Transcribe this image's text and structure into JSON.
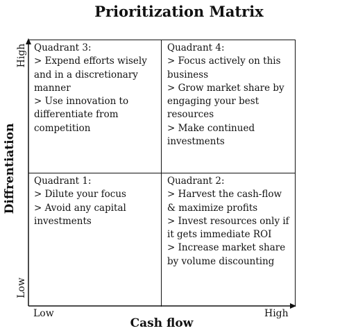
{
  "title": "Prioritization Matrix",
  "axes": {
    "x_label": "Cash flow",
    "y_label": "Diffrentiation",
    "x_low": "Low",
    "x_high": "High",
    "y_low": "Low",
    "y_high": "High"
  },
  "quadrants": {
    "q3": {
      "title": "Quadrant 3:",
      "items": [
        "> Expend efforts wisely and in a discretionary manner",
        "> Use innovation to differentiate from competition"
      ]
    },
    "q4": {
      "title": "Quadrant 4:",
      "items": [
        "> Focus actively on this business",
        "> Grow market share by engaging your best resources",
        "> Make continued investments"
      ]
    },
    "q1": {
      "title": "Quadrant 1:",
      "items": [
        "> Dilute your focus",
        "> Avoid any capital investments"
      ]
    },
    "q2": {
      "title": "Quadrant 2:",
      "items": [
        "> Harvest the cash-flow & maximize profits",
        "> Invest resources only if it gets immediate ROI",
        "> Increase market share by volume discounting"
      ]
    }
  }
}
